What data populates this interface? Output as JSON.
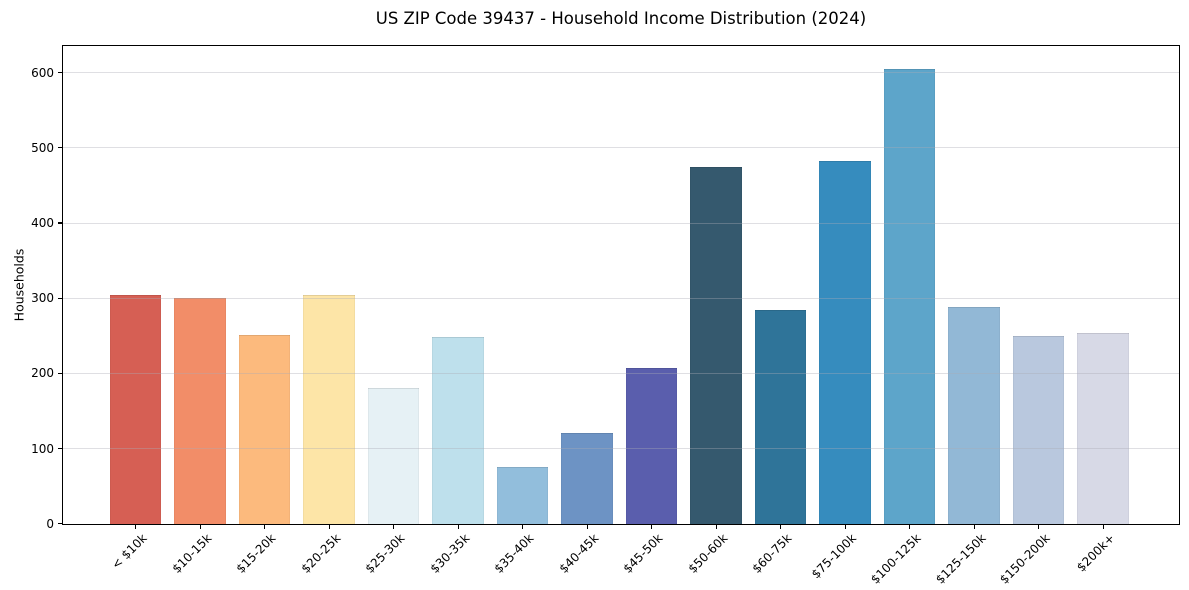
{
  "chart_data": {
    "type": "bar",
    "title": "US ZIP Code 39437 - Household Income Distribution (2024)",
    "xlabel": "",
    "ylabel": "Households",
    "categories": [
      "< $10k",
      "$10-15k",
      "$15-20k",
      "$20-25k",
      "$25-30k",
      "$30-35k",
      "$35-40k",
      "$40-45k",
      "$45-50k",
      "$50-60k",
      "$60-75k",
      "$75-100k",
      "$100-125k",
      "$125-150k",
      "$150-200k",
      "$200k+"
    ],
    "values": [
      304,
      301,
      251,
      305,
      181,
      249,
      76,
      121,
      207,
      475,
      285,
      483,
      605,
      289,
      250,
      254
    ],
    "bar_colors": [
      "#d65f54",
      "#f28d68",
      "#fcba7d",
      "#fde5a7",
      "#e6f1f5",
      "#bee0ec",
      "#92bedc",
      "#6d93c4",
      "#5a5ead",
      "#35596e",
      "#2f7499",
      "#368cbe",
      "#5da5ca",
      "#92b8d6",
      "#b9c8de",
      "#d7d9e6"
    ],
    "yticks": [
      0,
      100,
      200,
      300,
      400,
      500,
      600
    ],
    "ylim": [
      0,
      635
    ],
    "grid": "horizontal-only",
    "legend": "none",
    "background_color": "#ffffff",
    "spine_color": "#000000",
    "text_color": "#000000",
    "x_tick_rotation_deg": 45
  }
}
